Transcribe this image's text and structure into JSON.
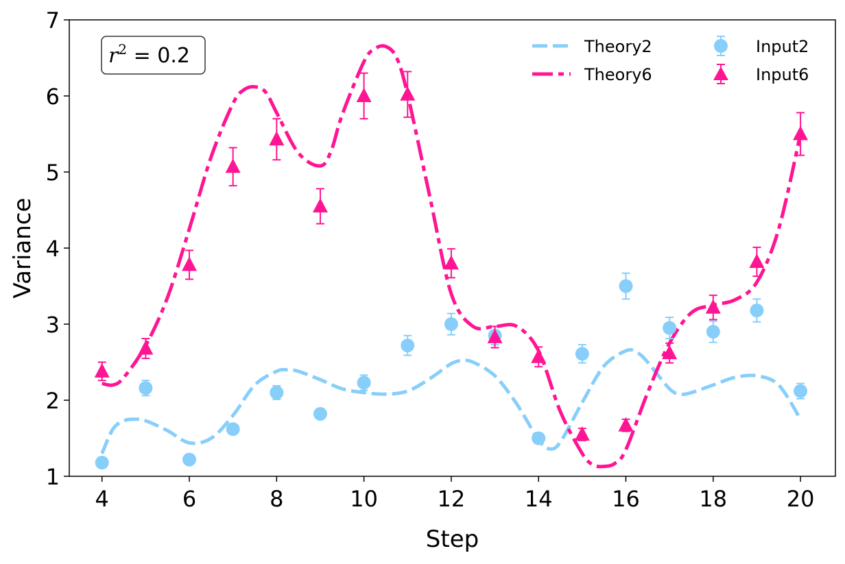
{
  "chart_data": {
    "type": "line",
    "title": "",
    "xlabel": "Step",
    "ylabel": "Variance",
    "xlim": [
      3.25,
      20.8
    ],
    "ylim": [
      1,
      7
    ],
    "xticks": [
      4,
      6,
      8,
      10,
      12,
      14,
      16,
      18,
      20
    ],
    "yticks": [
      1,
      2,
      3,
      4,
      5,
      6,
      7
    ],
    "annotation": {
      "var": "r",
      "exp": "2",
      "rest": " = 0.2"
    },
    "legend_position": "top-right",
    "series": [
      {
        "name": "Theory2",
        "kind": "line",
        "color": "#87CEFA",
        "x": [
          4,
          4.25,
          4.5,
          4.75,
          5,
          5.5,
          6,
          6.5,
          7,
          7.5,
          8,
          8.25,
          8.5,
          9,
          9.5,
          10,
          10.5,
          11,
          11.5,
          12,
          12.25,
          12.5,
          13,
          13.5,
          14,
          14.25,
          14.5,
          15,
          15.5,
          16,
          16.25,
          16.5,
          17,
          17.25,
          17.5,
          18,
          18.5,
          19,
          19.5,
          20
        ],
        "values": [
          1.3,
          1.62,
          1.73,
          1.75,
          1.73,
          1.6,
          1.44,
          1.5,
          1.8,
          2.2,
          2.38,
          2.4,
          2.38,
          2.27,
          2.15,
          2.1,
          2.08,
          2.12,
          2.28,
          2.48,
          2.52,
          2.5,
          2.32,
          1.95,
          1.48,
          1.36,
          1.45,
          1.97,
          2.45,
          2.65,
          2.63,
          2.5,
          2.15,
          2.08,
          2.1,
          2.2,
          2.3,
          2.32,
          2.2,
          1.75
        ]
      },
      {
        "name": "Theory6",
        "kind": "line",
        "color": "#FF1493",
        "x": [
          4,
          4.25,
          4.5,
          5,
          5.5,
          6,
          6.5,
          7,
          7.25,
          7.5,
          7.75,
          8,
          8.5,
          9,
          9.25,
          9.5,
          10,
          10.25,
          10.5,
          10.75,
          11,
          11.5,
          12,
          12.5,
          13,
          13.5,
          14,
          14.5,
          15,
          15.25,
          15.5,
          15.75,
          16,
          16.5,
          17,
          17.5,
          18,
          18.5,
          19,
          19.5,
          20
        ],
        "values": [
          2.22,
          2.2,
          2.3,
          2.72,
          3.35,
          4.25,
          5.2,
          5.9,
          6.08,
          6.12,
          6.05,
          5.78,
          5.25,
          5.08,
          5.28,
          5.75,
          6.45,
          6.62,
          6.65,
          6.5,
          6.02,
          4.7,
          3.4,
          2.97,
          2.97,
          2.97,
          2.65,
          1.85,
          1.3,
          1.15,
          1.13,
          1.17,
          1.35,
          2.1,
          2.75,
          3.15,
          3.25,
          3.32,
          3.55,
          4.25,
          5.5
        ]
      },
      {
        "name": "Input2",
        "kind": "errorbar",
        "marker": "circle",
        "color": "#87CEFA",
        "x": [
          4,
          5,
          6,
          7,
          8,
          9,
          10,
          11,
          12,
          13,
          14,
          15,
          16,
          17,
          18,
          19,
          20
        ],
        "values": [
          1.18,
          2.16,
          1.22,
          1.62,
          2.1,
          1.82,
          2.23,
          2.72,
          3.0,
          2.85,
          1.5,
          2.61,
          3.5,
          2.95,
          2.9,
          3.18,
          2.12
        ],
        "errors": [
          0.04,
          0.1,
          0.05,
          0.06,
          0.09,
          0.06,
          0.1,
          0.13,
          0.14,
          0.12,
          0.06,
          0.12,
          0.17,
          0.14,
          0.14,
          0.15,
          0.1
        ]
      },
      {
        "name": "Input6",
        "kind": "errorbar",
        "marker": "triangle",
        "color": "#FF1493",
        "x": [
          4,
          5,
          6,
          7,
          8,
          9,
          10,
          11,
          12,
          13,
          14,
          15,
          16,
          17,
          18,
          19,
          20
        ],
        "values": [
          2.38,
          2.68,
          3.78,
          5.07,
          5.43,
          4.55,
          6.0,
          6.02,
          3.8,
          2.83,
          2.57,
          1.55,
          1.67,
          2.62,
          3.22,
          3.82,
          5.5
        ],
        "errors": [
          0.12,
          0.13,
          0.19,
          0.25,
          0.27,
          0.23,
          0.3,
          0.3,
          0.19,
          0.14,
          0.13,
          0.08,
          0.08,
          0.13,
          0.16,
          0.19,
          0.28
        ]
      }
    ]
  }
}
